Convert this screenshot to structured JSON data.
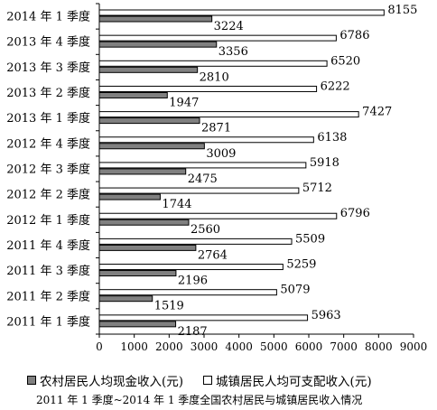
{
  "chart_data": {
    "type": "bar",
    "orientation": "horizontal",
    "categories": [
      "2014 年 1 季度",
      "2013 年 4 季度",
      "2013 年 3 季度",
      "2013 年 2 季度",
      "2013 年 1 季度",
      "2012 年 4 季度",
      "2012 年 3 季度",
      "2012 年 2 季度",
      "2012 年 1 季度",
      "2011 年 4 季度",
      "2011 年 3 季度",
      "2011 年 2 季度",
      "2011 年 1 季度"
    ],
    "series": [
      {
        "name": "城镇居民人均可支配收入(元)",
        "color": "#ffffff",
        "values": [
          8155,
          6786,
          6520,
          6222,
          7427,
          6138,
          5918,
          5712,
          6796,
          5509,
          5259,
          5079,
          5963
        ]
      },
      {
        "name": "农村居民人均现金收入(元)",
        "color": "#808080",
        "values": [
          3224,
          3356,
          2810,
          1947,
          2871,
          3009,
          2475,
          1744,
          2560,
          2764,
          2196,
          1519,
          2187
        ]
      }
    ],
    "xlim": [
      0,
      9000
    ],
    "xticks": [
      0,
      1000,
      2000,
      3000,
      4000,
      5000,
      6000,
      7000,
      8000,
      9000
    ],
    "grid": false,
    "legend_position": "bottom",
    "caption": "2011 年 1 季度~2014 年 1 季度全国农村居民与城镇居民收入情况"
  },
  "legend": {
    "rural_label": "农村居民人均现金收入(元)",
    "urban_label": "城镇居民人均可支配收入(元)",
    "rural_color": "#808080",
    "urban_color": "#ffffff"
  }
}
